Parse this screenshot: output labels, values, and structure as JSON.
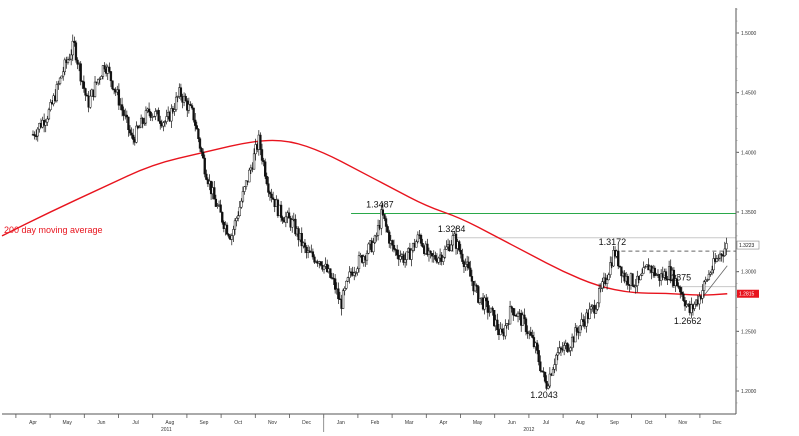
{
  "chart_data": {
    "type": "candlestick",
    "ylim": [
      1.18,
      1.535
    ],
    "x_months": [
      "Apr",
      "May",
      "Jun",
      "Jul",
      "Aug",
      "Sep",
      "Oct",
      "Nov",
      "Dec",
      "Jan",
      "Feb",
      "Mar",
      "Apr",
      "May",
      "Jun",
      "Jul",
      "Aug",
      "Sep",
      "Oct",
      "Nov",
      "Dec"
    ],
    "years": [
      "2011",
      "2012"
    ],
    "y_ticks": [
      "1.5000",
      "1.4500",
      "1.4000",
      "1.3500",
      "1.3000",
      "1.2500",
      "1.2000"
    ],
    "y_tick_values": [
      1.5,
      1.45,
      1.4,
      1.35,
      1.3,
      1.25,
      1.2
    ],
    "price_path": [
      {
        "m": 0,
        "v": 1.415
      },
      {
        "m": 0.5,
        "v": 1.435
      },
      {
        "m": 0.9,
        "v": 1.47
      },
      {
        "m": 1.2,
        "v": 1.49
      },
      {
        "m": 1.6,
        "v": 1.44
      },
      {
        "m": 2.1,
        "v": 1.475
      },
      {
        "m": 2.5,
        "v": 1.445
      },
      {
        "m": 2.9,
        "v": 1.41
      },
      {
        "m": 3.4,
        "v": 1.435
      },
      {
        "m": 3.9,
        "v": 1.425
      },
      {
        "m": 4.3,
        "v": 1.45
      },
      {
        "m": 4.7,
        "v": 1.43
      },
      {
        "m": 5.0,
        "v": 1.39
      },
      {
        "m": 5.3,
        "v": 1.36
      },
      {
        "m": 5.6,
        "v": 1.34
      },
      {
        "m": 5.8,
        "v": 1.33
      },
      {
        "m": 6.0,
        "v": 1.35
      },
      {
        "m": 6.3,
        "v": 1.38
      },
      {
        "m": 6.6,
        "v": 1.41
      },
      {
        "m": 6.9,
        "v": 1.37
      },
      {
        "m": 7.2,
        "v": 1.35
      },
      {
        "m": 7.6,
        "v": 1.34
      },
      {
        "m": 8.0,
        "v": 1.315
      },
      {
        "m": 8.4,
        "v": 1.31
      },
      {
        "m": 8.8,
        "v": 1.29
      },
      {
        "m": 9.0,
        "v": 1.272
      },
      {
        "m": 9.3,
        "v": 1.3
      },
      {
        "m": 9.7,
        "v": 1.315
      },
      {
        "m": 10.0,
        "v": 1.325
      },
      {
        "m": 10.2,
        "v": 1.3487
      },
      {
        "m": 10.5,
        "v": 1.32
      },
      {
        "m": 10.9,
        "v": 1.31
      },
      {
        "m": 11.3,
        "v": 1.33
      },
      {
        "m": 11.6,
        "v": 1.31
      },
      {
        "m": 12.0,
        "v": 1.315
      },
      {
        "m": 12.3,
        "v": 1.3284
      },
      {
        "m": 12.6,
        "v": 1.31
      },
      {
        "m": 13.0,
        "v": 1.28
      },
      {
        "m": 13.4,
        "v": 1.265
      },
      {
        "m": 13.7,
        "v": 1.245
      },
      {
        "m": 14.0,
        "v": 1.27
      },
      {
        "m": 14.4,
        "v": 1.255
      },
      {
        "m": 14.7,
        "v": 1.235
      },
      {
        "m": 15.0,
        "v": 1.2043
      },
      {
        "m": 15.3,
        "v": 1.23
      },
      {
        "m": 15.7,
        "v": 1.24
      },
      {
        "m": 16.0,
        "v": 1.255
      },
      {
        "m": 16.4,
        "v": 1.27
      },
      {
        "m": 16.7,
        "v": 1.29
      },
      {
        "m": 17.0,
        "v": 1.3172
      },
      {
        "m": 17.3,
        "v": 1.295
      },
      {
        "m": 17.7,
        "v": 1.29
      },
      {
        "m": 18.0,
        "v": 1.305
      },
      {
        "m": 18.3,
        "v": 1.295
      },
      {
        "m": 18.6,
        "v": 1.3
      },
      {
        "m": 18.9,
        "v": 1.2875
      },
      {
        "m": 19.2,
        "v": 1.2662
      },
      {
        "m": 19.5,
        "v": 1.28
      },
      {
        "m": 19.8,
        "v": 1.3
      },
      {
        "m": 20.1,
        "v": 1.315
      },
      {
        "m": 20.3,
        "v": 1.3223
      }
    ],
    "ma_path": [
      {
        "m": -1.3,
        "v": 1.33
      },
      {
        "m": 0.5,
        "v": 1.35
      },
      {
        "m": 2.0,
        "v": 1.37
      },
      {
        "m": 3.5,
        "v": 1.39
      },
      {
        "m": 5.0,
        "v": 1.4
      },
      {
        "m": 6.5,
        "v": 1.41
      },
      {
        "m": 7.5,
        "v": 1.41
      },
      {
        "m": 8.5,
        "v": 1.4
      },
      {
        "m": 9.5,
        "v": 1.385
      },
      {
        "m": 10.5,
        "v": 1.37
      },
      {
        "m": 11.5,
        "v": 1.355
      },
      {
        "m": 12.5,
        "v": 1.345
      },
      {
        "m": 13.5,
        "v": 1.33
      },
      {
        "m": 14.5,
        "v": 1.315
      },
      {
        "m": 15.5,
        "v": 1.3
      },
      {
        "m": 16.5,
        "v": 1.288
      },
      {
        "m": 17.5,
        "v": 1.282
      },
      {
        "m": 18.5,
        "v": 1.282
      },
      {
        "m": 19.5,
        "v": 1.28
      },
      {
        "m": 20.3,
        "v": 1.2815
      }
    ],
    "annotations": [
      {
        "label": "1.3487",
        "m": 10.2,
        "v": 1.3487,
        "side": "above"
      },
      {
        "label": "1.3284",
        "m": 12.3,
        "v": 1.3284,
        "side": "above"
      },
      {
        "label": "1.2043",
        "m": 15.0,
        "v": 1.2043,
        "side": "below"
      },
      {
        "label": "1.3172",
        "m": 17.0,
        "v": 1.3172,
        "side": "above"
      },
      {
        "label": "1.2875",
        "m": 18.9,
        "v": 1.2875,
        "side": "above"
      },
      {
        "label": "1.2662",
        "m": 19.2,
        "v": 1.2662,
        "side": "below"
      }
    ],
    "horizontal_lines": [
      {
        "value": 1.3487,
        "color": "#2aa84a",
        "from_m": 9.3,
        "style": "solid"
      },
      {
        "value": 1.3284,
        "color": "#c8c8c8",
        "from_m": 12.3,
        "style": "solid"
      },
      {
        "value": 1.3172,
        "color": "#666666",
        "from_m": 17.0,
        "style": "dashed"
      },
      {
        "value": 1.2875,
        "color": "#c8c8c8",
        "from_m": 18.9,
        "style": "solid"
      }
    ],
    "ma_label": "200 day moving average",
    "last_price_tag": {
      "label": "1.3223",
      "value": 1.3223
    },
    "ma_price_tag": {
      "label": "1.2815",
      "value": 1.2815
    },
    "colors": {
      "ma": "#e8141e",
      "candle": "#111111",
      "support": "#2aa84a",
      "axis": "#555555"
    }
  }
}
